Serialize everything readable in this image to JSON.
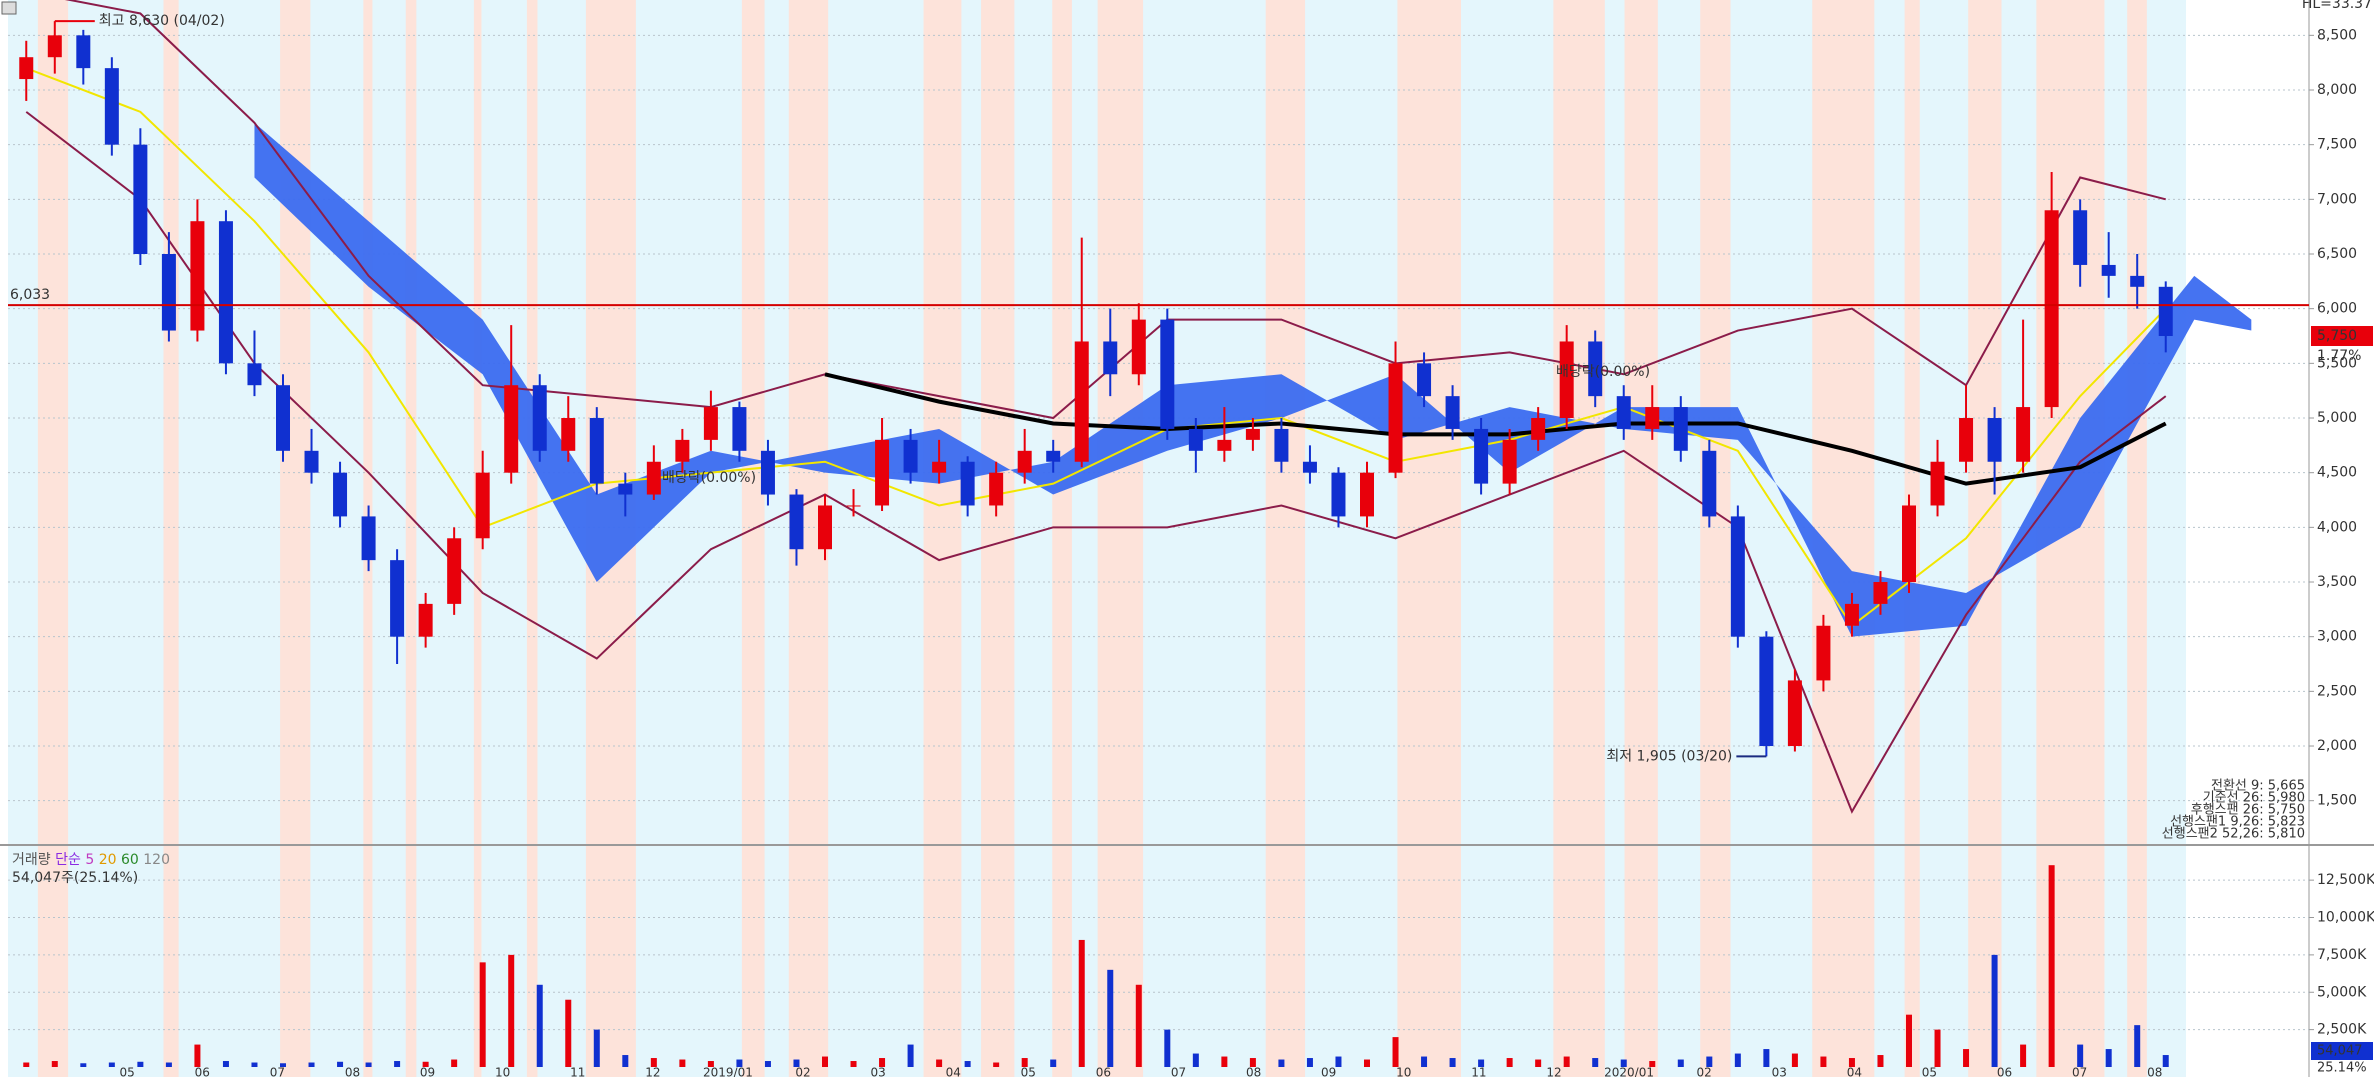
{
  "chart_data": [
    {
      "type": "candlestick",
      "corner_label": "HL=33.37",
      "up_color": "#e8000b",
      "down_color": "#1030d0",
      "ylim": [
        1113,
        8750
      ],
      "yticks": [
        {
          "value": 1500,
          "label": "1,500"
        },
        {
          "value": 2000,
          "label": "2,000"
        },
        {
          "value": 2500,
          "label": "2,500"
        },
        {
          "value": 3000,
          "label": "3,000"
        },
        {
          "value": 3500,
          "label": "3,500"
        },
        {
          "value": 4000,
          "label": "4,000"
        },
        {
          "value": 4500,
          "label": "4,500"
        },
        {
          "value": 5000,
          "label": "5,000"
        },
        {
          "value": 5500,
          "label": "5,500"
        },
        {
          "value": 6000,
          "label": "6,000"
        },
        {
          "value": 6500,
          "label": "6,500"
        },
        {
          "value": 7000,
          "label": "7,000"
        },
        {
          "value": 7500,
          "label": "7,500"
        },
        {
          "value": 8000,
          "label": "8,000"
        },
        {
          "value": 8500,
          "label": "8,500"
        }
      ],
      "grid": true,
      "candles": [
        [
          8100,
          8450,
          7900,
          8300
        ],
        [
          8300,
          8630,
          8150,
          8500
        ],
        [
          8500,
          8550,
          8050,
          8200
        ],
        [
          8200,
          8300,
          7400,
          7500
        ],
        [
          7500,
          7650,
          6400,
          6500
        ],
        [
          6500,
          6700,
          5700,
          5800
        ],
        [
          5800,
          7000,
          5700,
          6800
        ],
        [
          6800,
          6900,
          5400,
          5500
        ],
        [
          5500,
          5800,
          5200,
          5300
        ],
        [
          5300,
          5400,
          4600,
          4700
        ],
        [
          4700,
          4900,
          4400,
          4500
        ],
        [
          4500,
          4600,
          4000,
          4100
        ],
        [
          4100,
          4200,
          3600,
          3700
        ],
        [
          3700,
          3800,
          2750,
          3000
        ],
        [
          3000,
          3400,
          2900,
          3300
        ],
        [
          3300,
          4000,
          3200,
          3900
        ],
        [
          3900,
          4700,
          3800,
          4500
        ],
        [
          4500,
          5850,
          4400,
          5300
        ],
        [
          5300,
          5400,
          4600,
          4700
        ],
        [
          4700,
          5200,
          4600,
          5000
        ],
        [
          5000,
          5100,
          4300,
          4400
        ],
        [
          4400,
          4500,
          4100,
          4300
        ],
        [
          4300,
          4750,
          4250,
          4600
        ],
        [
          4600,
          4900,
          4500,
          4800
        ],
        [
          4800,
          5250,
          4700,
          5100
        ],
        [
          5100,
          5150,
          4600,
          4700
        ],
        [
          4700,
          4800,
          4200,
          4300
        ],
        [
          4300,
          4350,
          3650,
          3800
        ],
        [
          3800,
          4300,
          3700,
          4200
        ],
        [
          4200,
          4350,
          4100,
          4200
        ],
        [
          4200,
          5000,
          4150,
          4800
        ],
        [
          4800,
          4900,
          4400,
          4500
        ],
        [
          4500,
          4800,
          4400,
          4600
        ],
        [
          4600,
          4650,
          4100,
          4200
        ],
        [
          4200,
          4600,
          4100,
          4500
        ],
        [
          4500,
          4900,
          4400,
          4700
        ],
        [
          4700,
          4800,
          4500,
          4600
        ],
        [
          4600,
          6650,
          4550,
          5700
        ],
        [
          5700,
          6000,
          5200,
          5400
        ],
        [
          5400,
          6050,
          5300,
          5900
        ],
        [
          5900,
          6000,
          4800,
          4900
        ],
        [
          4900,
          5000,
          4500,
          4700
        ],
        [
          4700,
          5100,
          4600,
          4800
        ],
        [
          4800,
          5000,
          4700,
          4900
        ],
        [
          4900,
          5000,
          4500,
          4600
        ],
        [
          4600,
          4750,
          4400,
          4500
        ],
        [
          4500,
          4550,
          4000,
          4100
        ],
        [
          4100,
          4600,
          4000,
          4500
        ],
        [
          4500,
          5700,
          4450,
          5500
        ],
        [
          5500,
          5600,
          5100,
          5200
        ],
        [
          5200,
          5300,
          4800,
          4900
        ],
        [
          4900,
          5000,
          4300,
          4400
        ],
        [
          4400,
          4900,
          4300,
          4800
        ],
        [
          4800,
          5100,
          4700,
          5000
        ],
        [
          5000,
          5850,
          4900,
          5700
        ],
        [
          5700,
          5800,
          5100,
          5200
        ],
        [
          5200,
          5300,
          4800,
          4900
        ],
        [
          4900,
          5300,
          4800,
          5100
        ],
        [
          5100,
          5200,
          4600,
          4700
        ],
        [
          4700,
          4800,
          4000,
          4100
        ],
        [
          4100,
          4200,
          2900,
          3000
        ],
        [
          3000,
          3050,
          1905,
          2000
        ],
        [
          2000,
          2700,
          1950,
          2600
        ],
        [
          2600,
          3200,
          2500,
          3100
        ],
        [
          3100,
          3400,
          3000,
          3300
        ],
        [
          3300,
          3600,
          3200,
          3500
        ],
        [
          3500,
          4300,
          3400,
          4200
        ],
        [
          4200,
          4800,
          4100,
          4600
        ],
        [
          4600,
          5300,
          4500,
          5000
        ],
        [
          5000,
          5100,
          4300,
          4600
        ],
        [
          4600,
          5900,
          4500,
          5100
        ],
        [
          5100,
          7250,
          5000,
          6900
        ],
        [
          6900,
          7000,
          6200,
          6400
        ],
        [
          6400,
          6700,
          6100,
          6300
        ],
        [
          6300,
          6500,
          6000,
          6200
        ],
        [
          6200,
          6250,
          5600,
          5750
        ]
      ],
      "line_x": [
        0,
        4,
        8,
        12,
        16,
        20,
        24,
        28,
        32,
        36,
        40,
        44,
        48,
        52,
        56,
        60,
        64,
        68,
        72,
        75
      ],
      "bollinger_upper": {
        "color": "#8b1c4a",
        "values": [
          8900,
          8700,
          7700,
          6300,
          5300,
          5200,
          5100,
          5400,
          5200,
          5000,
          5900,
          5900,
          5500,
          5600,
          5400,
          5800,
          6000,
          5300,
          7200,
          7000
        ]
      },
      "bollinger_lower": {
        "color": "#8b1c4a",
        "values": [
          7800,
          7000,
          5500,
          4500,
          3400,
          2800,
          3800,
          4300,
          3700,
          4000,
          4000,
          4200,
          3900,
          4300,
          4700,
          4000,
          1400,
          3200,
          4600,
          5200
        ]
      },
      "ma20": {
        "color": "#f2e600",
        "values": [
          8200,
          7800,
          6800,
          5600,
          4000,
          4400,
          4500,
          4600,
          4200,
          4400,
          4900,
          5000,
          4600,
          4800,
          5100,
          4700,
          3100,
          3900,
          5200,
          6000
        ]
      },
      "ma120": {
        "color": "#000000",
        "x": [
          28,
          32,
          36,
          40,
          44,
          48,
          52,
          56,
          60,
          64,
          68,
          72,
          75
        ],
        "values": [
          5400,
          5150,
          4950,
          4900,
          4950,
          4850,
          4850,
          4950,
          4950,
          4700,
          4400,
          4550,
          4950
        ]
      },
      "cloud": {
        "color": "#3b6cf0",
        "x": [
          8,
          12,
          16,
          20,
          24,
          28,
          32,
          36,
          40,
          44,
          48,
          52,
          56,
          60,
          64,
          68,
          72,
          76,
          78
        ],
        "span_a": [
          7700,
          6800,
          5900,
          4300,
          4700,
          4500,
          4400,
          4600,
          5300,
          5400,
          4800,
          5100,
          4900,
          4800,
          3600,
          3400,
          4000,
          5900,
          5800
        ],
        "span_b": [
          7200,
          6200,
          5400,
          3500,
          4500,
          4700,
          4900,
          4300,
          4700,
          5000,
          5400,
          4500,
          5100,
          5100,
          3000,
          3100,
          5000,
          6300,
          5900
        ]
      },
      "hline": {
        "value": 6033,
        "label": "6,033",
        "color": "#d40000"
      },
      "high_label": "최고 8,630 (04/02)",
      "low_label": "최저 1,905 (03/20)",
      "dividend_labels": [
        "배당락(0.00%)",
        "배당락(0.00%)"
      ],
      "last_price": {
        "value": 5750,
        "label": "5,750"
      },
      "change_label": "1.77%",
      "ichimoku_legend": [
        "전환선 9: 5,665",
        "기준선 26: 5,980",
        "후행스팬 26: 5,750",
        "선행스팬1 9,26: 5,823",
        "선행스팬2 52,26: 5,810"
      ],
      "x_labels": [
        "05",
        "06",
        "07",
        "08",
        "09",
        "10",
        "11",
        "12",
        "2019/01",
        "02",
        "03",
        "04",
        "05",
        "06",
        "07",
        "08",
        "09",
        "10",
        "11",
        "12",
        "2020/01",
        "02",
        "03",
        "04",
        "05",
        "06",
        "07",
        "08"
      ]
    },
    {
      "type": "bar",
      "legend": [
        "거래량",
        "단순",
        "5",
        "20",
        "60",
        "120"
      ],
      "info": "54,047주(25.14%)",
      "last_label": "54,047",
      "last_pct": "25.14%",
      "ylim": [
        0,
        14650
      ],
      "yticks": [
        {
          "value": 2500,
          "label": "2,500K"
        },
        {
          "value": 5000,
          "label": "5,000K"
        },
        {
          "value": 7500,
          "label": "7,500K"
        },
        {
          "value": 10000,
          "label": "10,000K"
        },
        {
          "value": 12500,
          "label": "12,500K"
        }
      ],
      "values": [
        300,
        400,
        250,
        300,
        350,
        300,
        1500,
        400,
        300,
        250,
        300,
        350,
        300,
        400,
        350,
        500,
        7000,
        7500,
        5500,
        4500,
        2500,
        800,
        600,
        500,
        400,
        500,
        400,
        500,
        700,
        400,
        600,
        1500,
        500,
        400,
        300,
        600,
        500,
        8500,
        6500,
        5500,
        2500,
        900,
        700,
        600,
        500,
        600,
        700,
        500,
        2000,
        700,
        600,
        500,
        600,
        500,
        700,
        600,
        500,
        400,
        500,
        700,
        900,
        1200,
        900,
        700,
        600,
        800,
        3500,
        2500,
        1200,
        7500,
        1500,
        13500,
        1500,
        1200,
        2800,
        800
      ]
    }
  ]
}
